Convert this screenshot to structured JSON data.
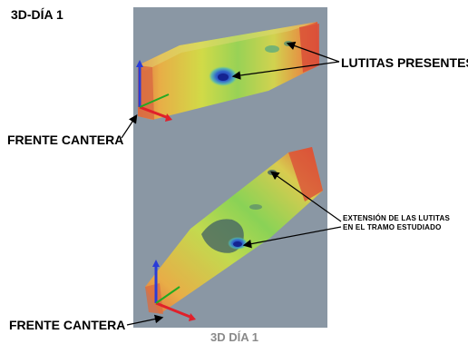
{
  "title": "3D-DÍA 1",
  "labels": {
    "lutitas": "LUTITAS PRESENTES",
    "extension_line1": "EXTENSIÓN DE LAS LUTITAS",
    "extension_line2": "EN EL TRAMO ESTUDIADO",
    "frente_top": "FRENTE CANTERA",
    "frente_bottom": "FRENTE CANTERA"
  },
  "caption": "3D DÍA 1",
  "colors": {
    "viewport_bg": "#8a97a4",
    "axis_x": "#e0202a",
    "axis_y": "#2a3cd8",
    "axis_z": "#22aa22",
    "caption": "#8a8a8a"
  }
}
